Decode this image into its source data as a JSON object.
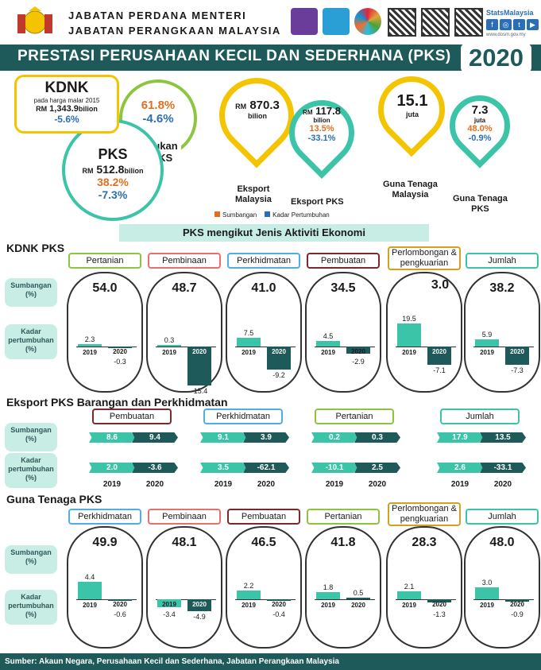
{
  "header": {
    "org_line1": "JABATAN PERDANA MENTERI",
    "org_line2": "JABATAN PERANGKAAN MALAYSIA",
    "brand": "StatsMalaysia",
    "url": "www.dosm.gov.my"
  },
  "banner": {
    "title": "PRESTASI PERUSAHAAN KECIL DAN SEDERHANA (PKS)",
    "year": "2020"
  },
  "kdnk": {
    "title": "KDNK",
    "subtitle": "pada harga malar 2015",
    "value_prefix": "RM",
    "value": "1,343.9",
    "value_unit": "bilion",
    "growth": "-5.6%"
  },
  "pks": {
    "title": "PKS",
    "value_prefix": "RM",
    "value": "512.8",
    "value_unit": "bilion",
    "share": "38.2%",
    "growth": "-7.3%"
  },
  "bukan": {
    "share": "61.8%",
    "growth": "-4.6%",
    "label1": "Bukan",
    "label2": "PKS"
  },
  "eksport_my": {
    "prefix": "RM",
    "value": "870.3",
    "unit": "bilion",
    "label1": "Eksport",
    "label2": "Malaysia"
  },
  "eksport_pks": {
    "prefix": "RM",
    "value": "117.8",
    "unit": "bilion",
    "share": "13.5%",
    "growth": "-33.1%",
    "label": "Eksport PKS"
  },
  "guna_my": {
    "value": "15.1",
    "unit": "juta",
    "label1": "Guna Tenaga",
    "label2": "Malaysia"
  },
  "guna_pks": {
    "value": "7.3",
    "unit": "juta",
    "share": "48.0%",
    "growth": "-0.9%",
    "label1": "Guna Tenaga",
    "label2": "PKS"
  },
  "legend": {
    "sumbangan": "Sumbangan",
    "kadar": "Kadar Pertumbuhan",
    "colors": {
      "sumbangan": "#e07020",
      "kadar": "#2a6fb5"
    }
  },
  "section_head": "PKS mengikut Jenis Aktiviti Ekonomi",
  "row_labels": {
    "sumbangan": "Sumbangan (%)",
    "kadar": "Kadar pertumbuhan (%)"
  },
  "year_a": "2019",
  "year_b": "2020",
  "kdnk_pks": {
    "title": "KDNK PKS",
    "items": [
      {
        "name": "Pertanian",
        "color": "#8cc63f",
        "share": "54.0",
        "g2019": 2.3,
        "g2020": -0.3
      },
      {
        "name": "Pembinaan",
        "color": "#e8706a",
        "share": "48.7",
        "g2019": 0.3,
        "g2020": -15.4
      },
      {
        "name": "Perkhidmatan",
        "color": "#4fb0e0",
        "share": "41.0",
        "g2019": 7.5,
        "g2020": -9.2
      },
      {
        "name": "Pembuatan",
        "color": "#7a2a2a",
        "share": "34.5",
        "g2019": 4.5,
        "g2020": -2.9
      },
      {
        "name": "Perlombongan & pengkuarian",
        "color": "#d4a020",
        "share": "3.0",
        "g2019": 19.5,
        "g2020": -7.1
      },
      {
        "name": "Jumlah",
        "color": "#3cc4a8",
        "share": "38.2",
        "g2019": 5.9,
        "g2020": -7.3
      }
    ]
  },
  "eksport": {
    "title": "Eksport PKS Barangan dan Perkhidmatan",
    "items": [
      {
        "name": "Pembuatan",
        "color": "#7a2a2a",
        "s2019": "8.6",
        "s2020": "9.4",
        "k2019": "2.0",
        "k2020": "-3.6"
      },
      {
        "name": "Perkhidmatan",
        "color": "#4fb0e0",
        "s2019": "9.1",
        "s2020": "3.9",
        "k2019": "3.5",
        "k2020": "-62.1"
      },
      {
        "name": "Pertanian",
        "color": "#8cc63f",
        "s2019": "0.2",
        "s2020": "0.3",
        "k2019": "-10.1",
        "k2020": "2.5"
      },
      {
        "name": "Jumlah",
        "color": "#3cc4a8",
        "s2019": "17.9",
        "s2020": "13.5",
        "k2019": "2.6",
        "k2020": "-33.1"
      }
    ]
  },
  "guna": {
    "title": "Guna Tenaga PKS",
    "items": [
      {
        "name": "Perkhidmatan",
        "color": "#4fb0e0",
        "share": "49.9",
        "g2019": 4.4,
        "g2020": -0.6
      },
      {
        "name": "Pembinaan",
        "color": "#e8706a",
        "share": "48.1",
        "g2019": -3.4,
        "g2020": -4.9
      },
      {
        "name": "Pembuatan",
        "color": "#7a2a2a",
        "share": "46.5",
        "g2019": 2.2,
        "g2020": -0.4
      },
      {
        "name": "Pertanian",
        "color": "#8cc63f",
        "share": "41.8",
        "g2019": 1.8,
        "g2020": 0.5
      },
      {
        "name": "Perlombongan & pengkuarian",
        "color": "#d4a020",
        "share": "28.3",
        "g2019": 2.1,
        "g2020": -1.3
      },
      {
        "name": "Jumlah",
        "color": "#3cc4a8",
        "share": "48.0",
        "g2019": 3.0,
        "g2020": -0.9
      }
    ]
  },
  "footer": "Sumber: Akaun Negara, Perusahaan Kecil dan Sederhana, Jabatan Perangkaan Malaysia"
}
